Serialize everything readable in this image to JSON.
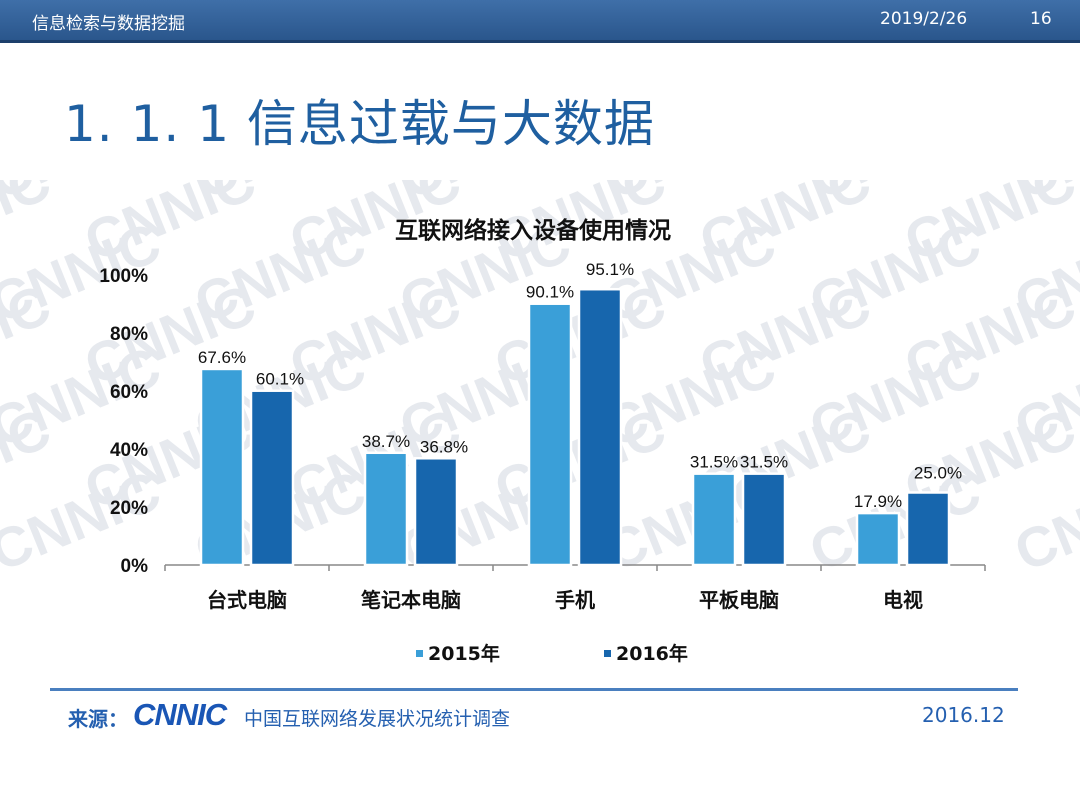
{
  "header": {
    "course": "信息检索与数据挖掘",
    "date": "2019/2/26",
    "page": "16"
  },
  "slide_title": "1. 1. 1  信息过载与大数据",
  "watermark_text": "CNNIC",
  "footer": {
    "source_label": "来源：",
    "logo": "CNNIC",
    "source_name": "中国互联网络发展状况统计调查",
    "source_date": "2016.12"
  },
  "colors": {
    "series_2015": "#3a9fd8",
    "series_2016": "#1766ad",
    "header_bg": "#2f5f97",
    "title": "#1f5fa0"
  },
  "chart_data": {
    "type": "bar",
    "title": "互联网络接入设备使用情况",
    "categories": [
      "台式电脑",
      "笔记本电脑",
      "手机",
      "平板电脑",
      "电视"
    ],
    "series": [
      {
        "name": "2015年",
        "values": [
          67.6,
          38.7,
          90.1,
          31.5,
          17.9
        ],
        "labels": [
          "67.6%",
          "38.7%",
          "90.1%",
          "31.5%",
          "17.9%"
        ]
      },
      {
        "name": "2016年",
        "values": [
          60.1,
          36.8,
          95.1,
          31.5,
          25.0
        ],
        "labels": [
          "60.1%",
          "36.8%",
          "95.1%",
          "31.5%",
          "25.0%"
        ]
      }
    ],
    "y_ticks": [
      "0%",
      "20%",
      "40%",
      "60%",
      "80%",
      "100%"
    ],
    "ylim": [
      0,
      100
    ],
    "grid": false,
    "legend": "bottom"
  }
}
